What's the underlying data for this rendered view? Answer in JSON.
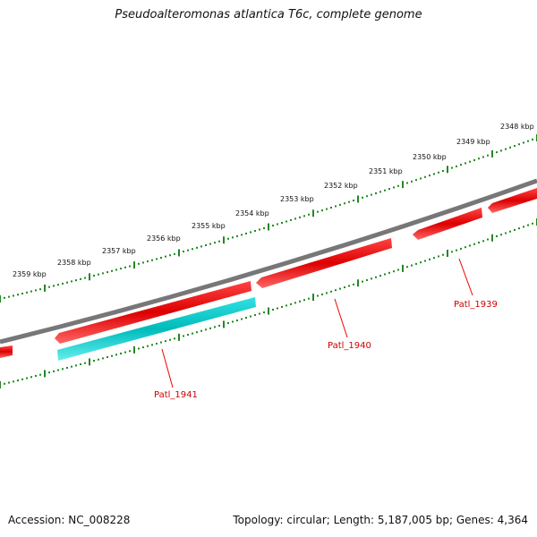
{
  "title": "Pseudoalteromonas atlantica T6c, complete genome",
  "footer": {
    "accession": "Accession: NC_008228",
    "summary": "Topology: circular; Length: 5,187,005 bp; Genes: 4,364"
  },
  "colors": {
    "backbone": "#777777",
    "gene_forward": "#ee0000",
    "gene_cyan": "#11cccc",
    "tick_outer": "#228822",
    "tick_inner": "#228822",
    "gene_label": "#cc0000"
  },
  "scale_labels": [
    "2348 kbp",
    "2349 kbp",
    "2350 kbp",
    "2351 kbp",
    "2352 kbp",
    "2353 kbp",
    "2354 kbp",
    "2355 kbp",
    "2356 kbp",
    "2357 kbp",
    "2358 kbp",
    "2359 kbp"
  ],
  "gene_labels": [
    "Patl_1939",
    "Patl_1940",
    "Patl_1941"
  ]
}
